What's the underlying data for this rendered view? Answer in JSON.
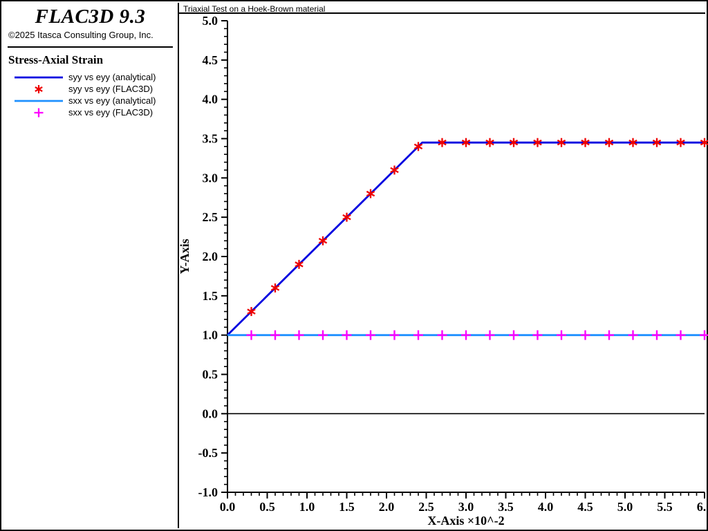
{
  "branding": {
    "app_title": "FLAC3D 9.3",
    "copyright": "©2025 Itasca Consulting Group, Inc."
  },
  "legend": {
    "title": "Stress-Axial Strain",
    "items": [
      {
        "label": "syy vs eyy (analytical)",
        "swatch": "line",
        "color": "#0000E0"
      },
      {
        "label": "syy vs eyy (FLAC3D)",
        "swatch": "asterisk",
        "color": "#EE0000"
      },
      {
        "label": "sxx vs eyy (analytical)",
        "swatch": "line",
        "color": "#1E90FF"
      },
      {
        "label": "sxx vs eyy (FLAC3D)",
        "swatch": "plus",
        "color": "#FF00FF"
      }
    ]
  },
  "chart_data": {
    "type": "line",
    "title": "Triaxial Test on a Hoek-Brown material",
    "xlabel": "X-Axis ×10^-2",
    "ylabel": "Y-Axis",
    "xlim": [
      0.0,
      6.0
    ],
    "ylim": [
      -1.0,
      5.0
    ],
    "x_major_step": 0.5,
    "x_minor_step": 0.1,
    "y_major_step": 0.5,
    "y_minor_step": 0.1,
    "tick_decimals": 1,
    "grid": false,
    "legend_position": "left-panel",
    "zero_line_y": 0.0,
    "axis_color": "#000000",
    "series": [
      {
        "name": "syy vs eyy (analytical)",
        "style": "line",
        "color": "#0000E0",
        "points": [
          [
            0.0,
            1.0
          ],
          [
            2.45,
            3.45
          ],
          [
            6.0,
            3.45
          ]
        ]
      },
      {
        "name": "syy vs eyy (FLAC3D)",
        "style": "marker",
        "marker": "asterisk",
        "color": "#EE0000",
        "x": [
          0.3,
          0.6,
          0.9,
          1.2,
          1.5,
          1.8,
          2.1,
          2.4,
          2.7,
          3.0,
          3.3,
          3.6,
          3.9,
          4.2,
          4.5,
          4.8,
          5.1,
          5.4,
          5.7,
          6.0
        ],
        "y": [
          1.3,
          1.6,
          1.9,
          2.2,
          2.5,
          2.8,
          3.1,
          3.4,
          3.45,
          3.45,
          3.45,
          3.45,
          3.45,
          3.45,
          3.45,
          3.45,
          3.45,
          3.45,
          3.45,
          3.45
        ]
      },
      {
        "name": "sxx vs eyy (analytical)",
        "style": "line",
        "color": "#1E90FF",
        "points": [
          [
            0.0,
            1.0
          ],
          [
            6.0,
            1.0
          ]
        ]
      },
      {
        "name": "sxx vs eyy (FLAC3D)",
        "style": "marker",
        "marker": "plus",
        "color": "#FF00FF",
        "x": [
          0.3,
          0.6,
          0.9,
          1.2,
          1.5,
          1.8,
          2.1,
          2.4,
          2.7,
          3.0,
          3.3,
          3.6,
          3.9,
          4.2,
          4.5,
          4.8,
          5.1,
          5.4,
          5.7,
          6.0
        ],
        "y": [
          1.0,
          1.0,
          1.0,
          1.0,
          1.0,
          1.0,
          1.0,
          1.0,
          1.0,
          1.0,
          1.0,
          1.0,
          1.0,
          1.0,
          1.0,
          1.0,
          1.0,
          1.0,
          1.0,
          1.0
        ]
      }
    ]
  }
}
